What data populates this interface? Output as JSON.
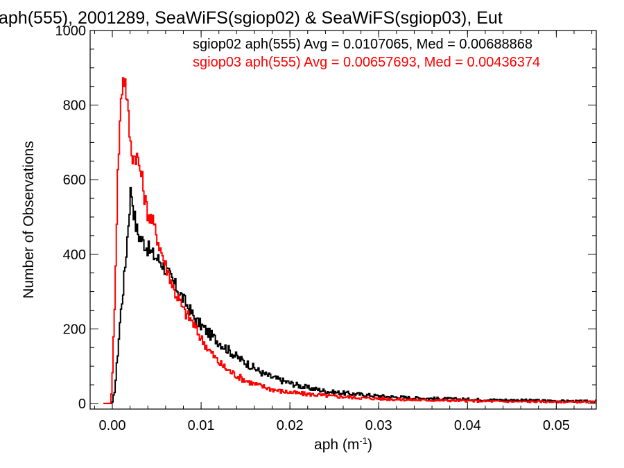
{
  "chart_data": {
    "type": "line",
    "title": "aph(555), 2001289, SeaWiFS(sgiop02) & SeaWiFS(sgiop03), Eut",
    "xlabel": "aph (m",
    "xlabel_sup": "-1",
    "xlabel_tail": ")",
    "ylabel": "Number of Observations",
    "xlim": [
      -0.0025,
      0.0545
    ],
    "ylim": [
      -15,
      1000
    ],
    "xticks": [
      0.0,
      0.01,
      0.02,
      0.03,
      0.04,
      0.05
    ],
    "xtick_labels": [
      "0.00",
      "0.01",
      "0.02",
      "0.03",
      "0.04",
      "0.05"
    ],
    "yticks": [
      0,
      200,
      400,
      600,
      800,
      1000
    ],
    "ytick_labels": [
      "0",
      "200",
      "400",
      "600",
      "800",
      "1000"
    ],
    "legend_placement": "top-right",
    "series": [
      {
        "name": "sgiop02",
        "legend_text": "sgiop02 aph(555) Avg = 0.0107065, Med = 0.00688868",
        "color": "#000000",
        "x": [
          -0.001,
          0.0,
          0.0003,
          0.0006,
          0.0009,
          0.0012,
          0.0015,
          0.0018,
          0.0021,
          0.0024,
          0.0027,
          0.003,
          0.0033,
          0.0036,
          0.0039,
          0.0042,
          0.0045,
          0.005,
          0.0055,
          0.006,
          0.0065,
          0.007,
          0.0075,
          0.008,
          0.0085,
          0.009,
          0.0095,
          0.01,
          0.011,
          0.012,
          0.013,
          0.014,
          0.015,
          0.016,
          0.017,
          0.018,
          0.019,
          0.02,
          0.021,
          0.022,
          0.023,
          0.024,
          0.025,
          0.026,
          0.028,
          0.03,
          0.032,
          0.035,
          0.038,
          0.04,
          0.042,
          0.045,
          0.048,
          0.05,
          0.052,
          0.0545
        ],
        "y": [
          0,
          0,
          40,
          130,
          230,
          300,
          380,
          480,
          580,
          520,
          470,
          450,
          440,
          430,
          420,
          410,
          400,
          390,
          380,
          360,
          340,
          320,
          300,
          280,
          260,
          240,
          220,
          210,
          185,
          165,
          145,
          125,
          110,
          95,
          80,
          70,
          62,
          55,
          48,
          42,
          38,
          33,
          30,
          28,
          24,
          20,
          17,
          14,
          12,
          11,
          10,
          9,
          8,
          7,
          6,
          6
        ]
      },
      {
        "name": "sgiop03",
        "legend_text": "sgiop03 aph(555) Avg = 0.00657693, Med = 0.00436374",
        "color": "#ff0000",
        "x": [
          -0.001,
          -0.0002,
          0.0,
          0.0003,
          0.0006,
          0.0009,
          0.0012,
          0.0015,
          0.0018,
          0.0021,
          0.0024,
          0.0027,
          0.003,
          0.0033,
          0.0036,
          0.0039,
          0.0042,
          0.0045,
          0.005,
          0.0055,
          0.006,
          0.0065,
          0.007,
          0.0075,
          0.008,
          0.0085,
          0.009,
          0.0095,
          0.01,
          0.011,
          0.012,
          0.013,
          0.014,
          0.015,
          0.016,
          0.017,
          0.018,
          0.019,
          0.02,
          0.021,
          0.022,
          0.023,
          0.024,
          0.025,
          0.026,
          0.028,
          0.03,
          0.032,
          0.035,
          0.038,
          0.04,
          0.042,
          0.045,
          0.048,
          0.05,
          0.052,
          0.0545
        ],
        "y": [
          0,
          0,
          60,
          300,
          600,
          780,
          880,
          860,
          770,
          680,
          660,
          670,
          640,
          610,
          560,
          520,
          500,
          490,
          450,
          410,
          370,
          340,
          300,
          280,
          250,
          235,
          220,
          195,
          175,
          140,
          110,
          90,
          75,
          62,
          52,
          45,
          38,
          33,
          30,
          27,
          25,
          23,
          21,
          19,
          18,
          15,
          13,
          11,
          9,
          8,
          7,
          6,
          5,
          5,
          4,
          4,
          4
        ]
      }
    ]
  }
}
